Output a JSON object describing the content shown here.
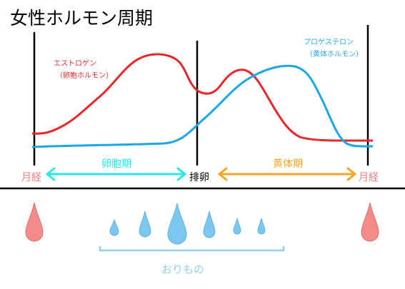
{
  "header": {
    "title": "女性ホルモン周期"
  },
  "estrogen": {
    "name": "エストロゲン",
    "subtitle": "（卵胞ホルモン）"
  },
  "progesterone": {
    "name": "プロゲステロン",
    "subtitle": "（黄体ホルモン）"
  },
  "phases": {
    "menstruation_start": "月経",
    "follicular": "卵胞期",
    "ovulation": "排卵",
    "luteal": "黄体期",
    "menstruation_end": "月経"
  },
  "discharge": {
    "label": "おりもの"
  }
}
